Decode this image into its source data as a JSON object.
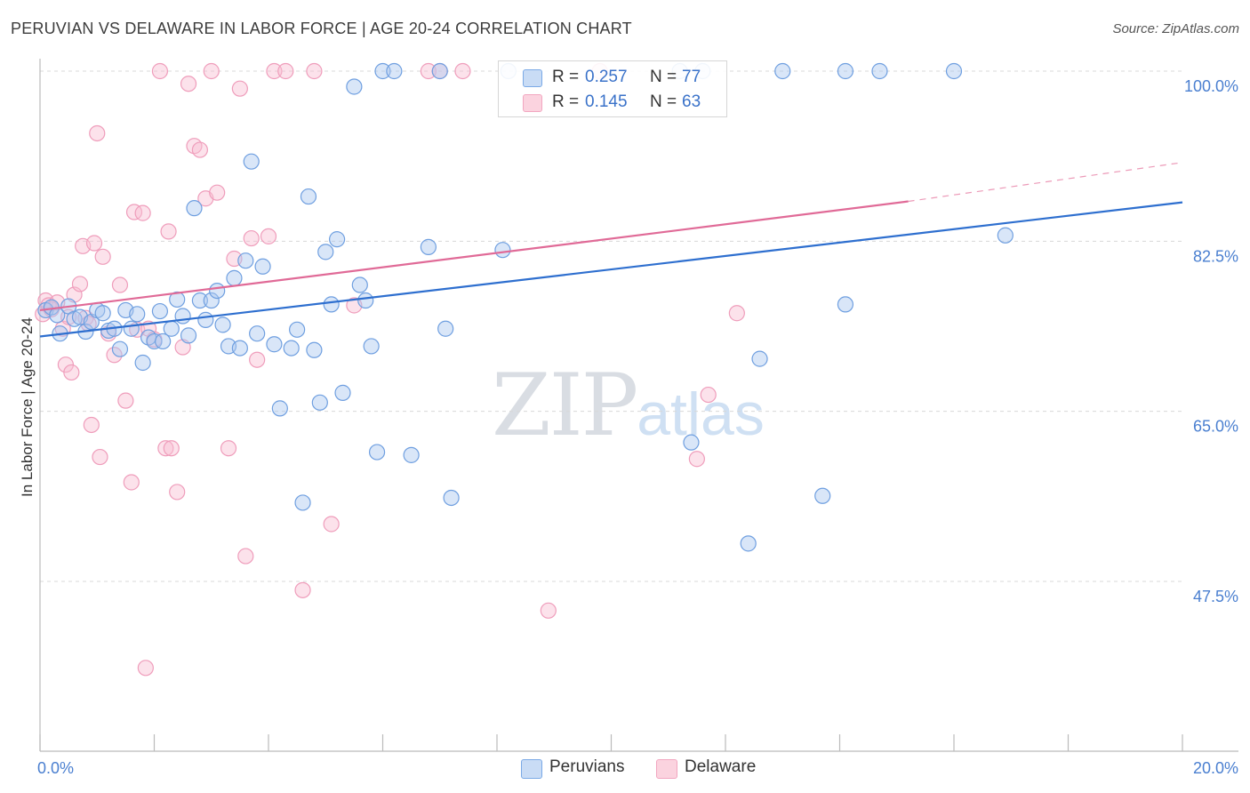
{
  "header": {
    "title": "PERUVIAN VS DELAWARE IN LABOR FORCE | AGE 20-24 CORRELATION CHART",
    "source": "Source: ZipAtlas.com"
  },
  "watermark": {
    "zip": "ZIP",
    "atlas": "atlas"
  },
  "legend": {
    "rows": [
      {
        "r_label": "R =",
        "r_value": "0.257",
        "n_label": "N =",
        "n_value": "77"
      },
      {
        "r_label": "R =",
        "r_value": "0.145",
        "n_label": "N =",
        "n_value": "63"
      }
    ]
  },
  "bottom_legend": {
    "items": [
      "Peruvians",
      "Delaware"
    ]
  },
  "chart_data": {
    "type": "scatter",
    "title": "PERUVIAN VS DELAWARE IN LABOR FORCE | AGE 20-24 CORRELATION CHART",
    "xlabel": "",
    "ylabel": "In Labor Force | Age 20-24",
    "xlim": [
      0,
      20
    ],
    "ylim": [
      30,
      102.5
    ],
    "x_tick_labels": [
      {
        "value": 0,
        "label": "0.0%"
      },
      {
        "value": 20,
        "label": "20.0%"
      }
    ],
    "y_ticks": [
      {
        "value": 100,
        "label": "100.0%"
      },
      {
        "value": 82.5,
        "label": "82.5%"
      },
      {
        "value": 65,
        "label": "65.0%"
      },
      {
        "value": 47.5,
        "label": "47.5%"
      }
    ],
    "grid": true,
    "legend_position": "top-center",
    "colors": {
      "peruvians": "#7aa9e6",
      "delaware": "#f2a6c0",
      "peruvians_line": "#2e6fcf",
      "delaware_line": "#e06a97"
    },
    "series": [
      {
        "name": "Peruvians",
        "r": 0.257,
        "n": 77,
        "trend": {
          "x0": 0,
          "y0": 72.7,
          "x1": 20,
          "y1": 86.5
        },
        "points": [
          [
            0.1,
            75.4
          ],
          [
            0.2,
            75.7
          ],
          [
            0.3,
            74.9
          ],
          [
            0.35,
            73.0
          ],
          [
            0.5,
            75.8
          ],
          [
            0.6,
            74.5
          ],
          [
            0.7,
            74.7
          ],
          [
            0.8,
            73.2
          ],
          [
            0.9,
            74.2
          ],
          [
            1.0,
            75.4
          ],
          [
            1.1,
            75.1
          ],
          [
            1.2,
            73.3
          ],
          [
            1.3,
            73.5
          ],
          [
            1.4,
            71.4
          ],
          [
            1.5,
            75.4
          ],
          [
            1.6,
            73.5
          ],
          [
            1.7,
            75.0
          ],
          [
            1.8,
            70.0
          ],
          [
            1.9,
            72.6
          ],
          [
            2.0,
            72.2
          ],
          [
            2.1,
            75.3
          ],
          [
            2.15,
            72.2
          ],
          [
            2.3,
            73.5
          ],
          [
            2.4,
            76.5
          ],
          [
            2.5,
            74.8
          ],
          [
            2.6,
            72.8
          ],
          [
            2.7,
            85.9
          ],
          [
            2.8,
            76.4
          ],
          [
            2.9,
            74.4
          ],
          [
            3.0,
            76.4
          ],
          [
            3.1,
            77.4
          ],
          [
            3.2,
            73.9
          ],
          [
            3.3,
            71.7
          ],
          [
            3.4,
            78.7
          ],
          [
            3.5,
            71.5
          ],
          [
            3.6,
            80.5
          ],
          [
            3.7,
            90.7
          ],
          [
            3.8,
            73.0
          ],
          [
            3.9,
            79.9
          ],
          [
            4.1,
            71.9
          ],
          [
            4.2,
            65.3
          ],
          [
            4.4,
            71.5
          ],
          [
            4.5,
            73.4
          ],
          [
            4.6,
            55.6
          ],
          [
            4.7,
            87.1
          ],
          [
            4.8,
            71.3
          ],
          [
            4.9,
            65.9
          ],
          [
            5.0,
            81.4
          ],
          [
            5.1,
            76.0
          ],
          [
            5.2,
            82.7
          ],
          [
            5.3,
            66.9
          ],
          [
            5.5,
            98.4
          ],
          [
            5.6,
            78.0
          ],
          [
            5.7,
            76.4
          ],
          [
            5.8,
            71.7
          ],
          [
            5.9,
            60.8
          ],
          [
            6.0,
            100.0
          ],
          [
            6.2,
            100.0
          ],
          [
            6.5,
            60.5
          ],
          [
            6.8,
            81.9
          ],
          [
            7.0,
            100.0
          ],
          [
            7.1,
            73.5
          ],
          [
            7.2,
            56.1
          ],
          [
            8.1,
            81.6
          ],
          [
            8.2,
            100.0
          ],
          [
            11.2,
            100.0
          ],
          [
            11.4,
            61.8
          ],
          [
            11.6,
            100.0
          ],
          [
            12.4,
            51.4
          ],
          [
            12.6,
            70.4
          ],
          [
            13.0,
            100.0
          ],
          [
            13.7,
            56.3
          ],
          [
            14.1,
            76.0
          ],
          [
            14.1,
            100.0
          ],
          [
            14.7,
            100.0
          ],
          [
            16.0,
            100.0
          ],
          [
            16.9,
            83.1
          ]
        ]
      },
      {
        "name": "Delaware",
        "r": 0.145,
        "n": 63,
        "trend": {
          "x0": 0,
          "y0": 75.4,
          "x1": 15.2,
          "y1": 86.6,
          "dashed_to": {
            "x": 20,
            "y": 90.6
          }
        },
        "points": [
          [
            0.05,
            75.0
          ],
          [
            0.1,
            76.4
          ],
          [
            0.15,
            75.9
          ],
          [
            0.2,
            75.5
          ],
          [
            0.3,
            76.2
          ],
          [
            0.4,
            73.5
          ],
          [
            0.45,
            69.8
          ],
          [
            0.5,
            74.7
          ],
          [
            0.55,
            69.0
          ],
          [
            0.6,
            77.0
          ],
          [
            0.7,
            78.1
          ],
          [
            0.75,
            82.0
          ],
          [
            0.8,
            74.6
          ],
          [
            0.85,
            74.0
          ],
          [
            0.9,
            63.6
          ],
          [
            0.95,
            82.3
          ],
          [
            1.0,
            93.6
          ],
          [
            1.05,
            60.3
          ],
          [
            1.1,
            80.9
          ],
          [
            1.2,
            73.0
          ],
          [
            1.3,
            70.8
          ],
          [
            1.4,
            78.0
          ],
          [
            1.5,
            66.1
          ],
          [
            1.6,
            57.7
          ],
          [
            1.65,
            85.5
          ],
          [
            1.7,
            73.4
          ],
          [
            1.8,
            85.4
          ],
          [
            1.85,
            38.6
          ],
          [
            1.9,
            73.5
          ],
          [
            2.0,
            72.4
          ],
          [
            2.1,
            100.0
          ],
          [
            2.2,
            61.2
          ],
          [
            2.25,
            83.5
          ],
          [
            2.3,
            61.2
          ],
          [
            2.4,
            56.7
          ],
          [
            2.5,
            71.6
          ],
          [
            2.6,
            98.7
          ],
          [
            2.7,
            92.3
          ],
          [
            2.8,
            91.9
          ],
          [
            2.9,
            86.9
          ],
          [
            3.0,
            100.0
          ],
          [
            3.1,
            87.5
          ],
          [
            3.3,
            61.2
          ],
          [
            3.4,
            80.7
          ],
          [
            3.5,
            98.2
          ],
          [
            3.6,
            50.1
          ],
          [
            3.7,
            82.8
          ],
          [
            3.8,
            70.3
          ],
          [
            4.0,
            83.0
          ],
          [
            4.1,
            100.0
          ],
          [
            4.3,
            100.0
          ],
          [
            4.6,
            46.6
          ],
          [
            4.8,
            100.0
          ],
          [
            5.1,
            53.4
          ],
          [
            5.5,
            75.9
          ],
          [
            6.8,
            100.0
          ],
          [
            7.0,
            100.0
          ],
          [
            7.4,
            100.0
          ],
          [
            8.9,
            44.5
          ],
          [
            9.8,
            100.0
          ],
          [
            11.5,
            60.1
          ],
          [
            11.7,
            66.7
          ],
          [
            12.2,
            75.1
          ]
        ]
      }
    ]
  }
}
